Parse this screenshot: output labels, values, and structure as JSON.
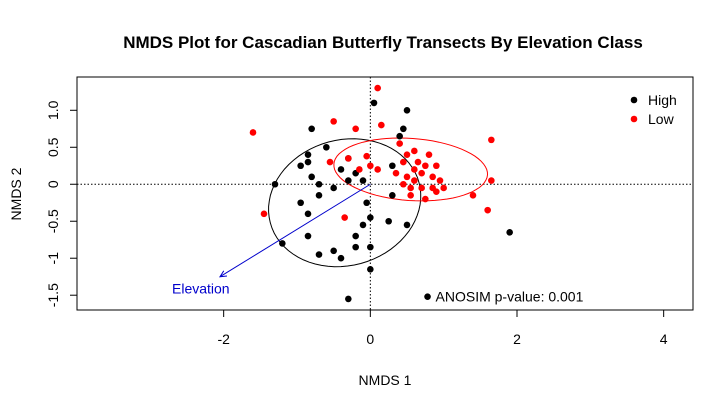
{
  "chart_data": {
    "type": "scatter",
    "title": "NMDS Plot for Cascadian Butterfly Transects By Elevation Class",
    "xlabel": "NMDS 1",
    "ylabel": "NMDS 2",
    "xlim": [
      -4.0,
      4.4
    ],
    "ylim": [
      -1.7,
      1.45
    ],
    "x_ticks": [
      {
        "value": -2,
        "label": "-2"
      },
      {
        "value": 0,
        "label": "0"
      },
      {
        "value": 2,
        "label": "2"
      },
      {
        "value": 4,
        "label": "4"
      }
    ],
    "y_ticks": [
      {
        "value": -1.5,
        "label": "-1.5"
      },
      {
        "value": -1.0,
        "label": "-1"
      },
      {
        "value": -0.5,
        "label": "-0.5"
      },
      {
        "value": 0.0,
        "label": "0"
      },
      {
        "value": 0.5,
        "label": "0.5"
      },
      {
        "value": 1.0,
        "label": "1.0"
      }
    ],
    "reference_lines": {
      "x": 0,
      "y": 0
    },
    "legend": {
      "position": "top-right",
      "entries": [
        {
          "label": "High",
          "color": "#000000"
        },
        {
          "label": "Low",
          "color": "#ff0000"
        }
      ]
    },
    "series": [
      {
        "name": "High",
        "color": "#000000",
        "points": [
          [
            -0.8,
            0.75
          ],
          [
            -0.85,
            0.4
          ],
          [
            -0.85,
            0.3
          ],
          [
            -0.95,
            0.25
          ],
          [
            -0.6,
            0.5
          ],
          [
            -0.4,
            0.2
          ],
          [
            -0.2,
            0.15
          ],
          [
            -0.3,
            0.05
          ],
          [
            -0.5,
            -0.05
          ],
          [
            -0.8,
            0.1
          ],
          [
            -0.7,
            0.0
          ],
          [
            -1.3,
            0.0
          ],
          [
            -0.7,
            -0.15
          ],
          [
            -0.95,
            -0.25
          ],
          [
            -0.85,
            -0.4
          ],
          [
            -0.85,
            -0.7
          ],
          [
            -0.7,
            -0.95
          ],
          [
            -0.5,
            -0.9
          ],
          [
            -0.4,
            -1.0
          ],
          [
            -0.2,
            -0.85
          ],
          [
            -0.2,
            -0.7
          ],
          [
            -0.1,
            -0.55
          ],
          [
            0.0,
            -0.45
          ],
          [
            0.0,
            -0.85
          ],
          [
            0.0,
            -1.15
          ],
          [
            0.25,
            -0.5
          ],
          [
            0.3,
            -0.15
          ],
          [
            0.3,
            0.25
          ],
          [
            0.4,
            0.65
          ],
          [
            0.45,
            0.75
          ],
          [
            0.5,
            1.0
          ],
          [
            0.05,
            1.1
          ],
          [
            0.5,
            -0.55
          ],
          [
            1.9,
            -0.65
          ],
          [
            -1.2,
            -0.8
          ],
          [
            -0.3,
            -1.55
          ],
          [
            -0.3,
            0.35
          ],
          [
            -0.1,
            0.05
          ],
          [
            -0.05,
            -0.25
          ]
        ]
      },
      {
        "name": "Low",
        "color": "#ff0000",
        "points": [
          [
            0.1,
            1.3
          ],
          [
            -0.5,
            0.85
          ],
          [
            -0.2,
            0.75
          ],
          [
            0.15,
            0.8
          ],
          [
            -1.6,
            0.7
          ],
          [
            1.65,
            0.6
          ],
          [
            -0.55,
            0.3
          ],
          [
            -0.3,
            0.35
          ],
          [
            -0.15,
            0.2
          ],
          [
            -0.05,
            0.38
          ],
          [
            0.0,
            0.25
          ],
          [
            0.1,
            0.2
          ],
          [
            -1.45,
            -0.4
          ],
          [
            -0.35,
            -0.45
          ],
          [
            1.4,
            -0.15
          ],
          [
            1.6,
            -0.35
          ],
          [
            1.65,
            0.05
          ],
          [
            0.35,
            0.15
          ],
          [
            0.45,
            0.0
          ],
          [
            0.5,
            0.1
          ],
          [
            0.55,
            -0.05
          ],
          [
            0.6,
            0.05
          ],
          [
            0.6,
            0.2
          ],
          [
            0.65,
            0.3
          ],
          [
            0.7,
            0.15
          ],
          [
            0.7,
            -0.05
          ],
          [
            0.75,
            0.25
          ],
          [
            0.8,
            0.4
          ],
          [
            0.85,
            0.1
          ],
          [
            0.9,
            -0.1
          ],
          [
            0.95,
            0.05
          ],
          [
            1.0,
            -0.05
          ],
          [
            0.5,
            0.4
          ],
          [
            0.45,
            0.3
          ],
          [
            0.55,
            -0.15
          ],
          [
            0.4,
            0.55
          ],
          [
            0.9,
            0.25
          ],
          [
            0.75,
            -0.2
          ],
          [
            0.6,
            0.45
          ],
          [
            0.85,
            -0.05
          ]
        ]
      }
    ],
    "ellipses": [
      {
        "group": "High",
        "color": "#000000",
        "cx": -0.35,
        "cy": -0.25,
        "rx": 1.05,
        "ry": 0.85,
        "angle_deg": 15
      },
      {
        "group": "Low",
        "color": "#ff0000",
        "cx": 0.55,
        "cy": 0.2,
        "rx": 1.05,
        "ry": 0.42,
        "angle_deg": -4
      }
    ],
    "vector": {
      "label": "Elevation",
      "color": "#0000cc",
      "from": [
        0,
        0
      ],
      "to": [
        -2.05,
        -1.25
      ]
    },
    "annotation": {
      "marker": [
        0.78,
        -1.52
      ],
      "text": "ANOSIM p-value:  0.001"
    }
  }
}
